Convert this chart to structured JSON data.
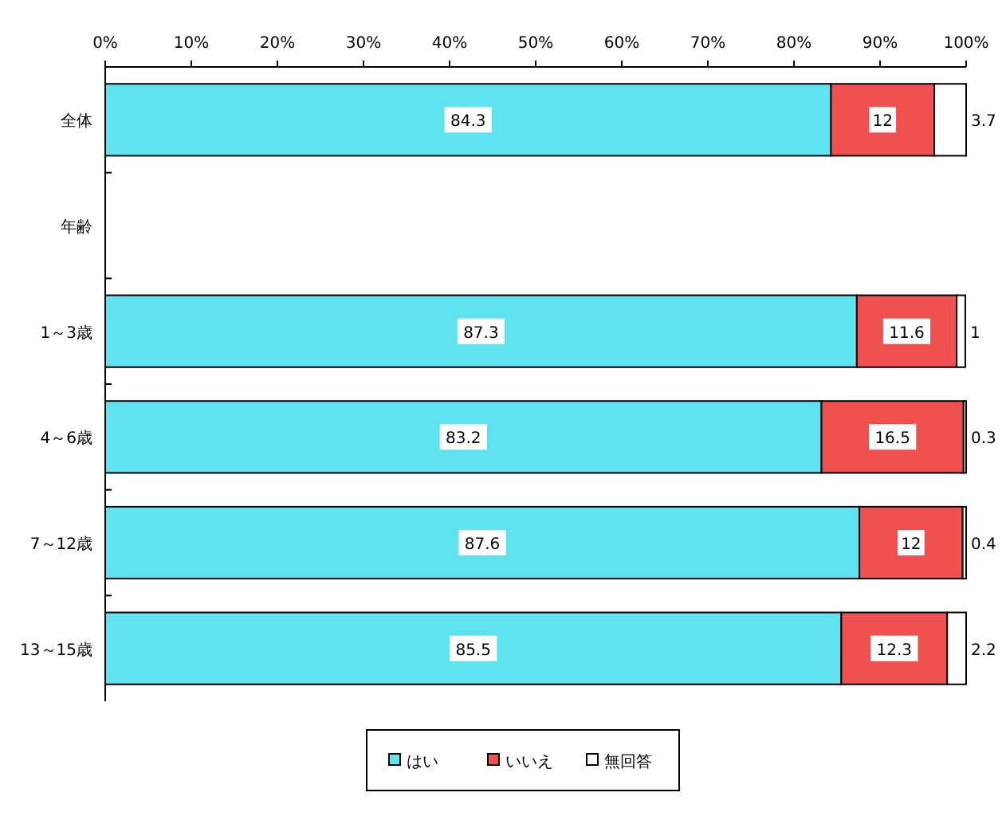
{
  "chart_data": {
    "type": "bar",
    "orientation": "horizontal",
    "stacked": true,
    "categories": [
      "全体",
      "年齢",
      "1～3歳",
      "4～6歳",
      "7～12歳",
      "13～15歳"
    ],
    "series": [
      {
        "name": "はい",
        "color": "#5fe3f0",
        "values": [
          84.3,
          null,
          87.3,
          83.2,
          87.6,
          85.5
        ]
      },
      {
        "name": "いいえ",
        "color": "#f05050",
        "values": [
          12,
          null,
          11.6,
          16.5,
          12,
          12.3
        ]
      },
      {
        "name": "無回答",
        "color": "#ffffff",
        "values": [
          3.7,
          null,
          1,
          0.3,
          0.4,
          2.2
        ]
      }
    ],
    "xlim": [
      0,
      100
    ],
    "xticks": [
      {
        "value": 0,
        "label": "0%"
      },
      {
        "value": 10,
        "label": "10%"
      },
      {
        "value": 20,
        "label": "20%"
      },
      {
        "value": 30,
        "label": "30%"
      },
      {
        "value": 40,
        "label": "40%"
      },
      {
        "value": 50,
        "label": "50%"
      },
      {
        "value": 60,
        "label": "60%"
      },
      {
        "value": 70,
        "label": "70%"
      },
      {
        "value": 80,
        "label": "80%"
      },
      {
        "value": 90,
        "label": "90%"
      },
      {
        "value": 100,
        "label": "100%"
      }
    ],
    "data_labels": true,
    "legend": "bottom"
  }
}
